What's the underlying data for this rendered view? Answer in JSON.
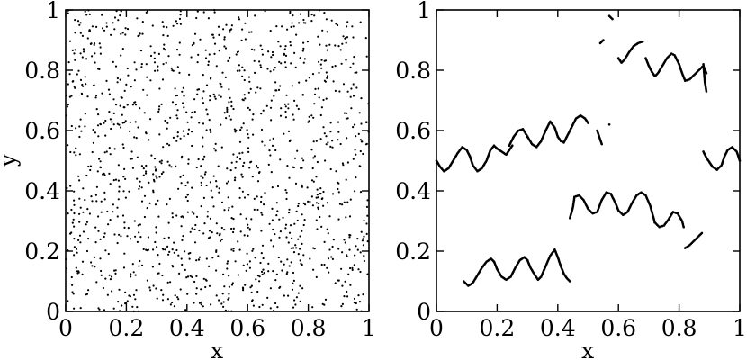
{
  "chart_data": [
    {
      "type": "scatter",
      "xlabel": "x",
      "ylabel": "y",
      "xlim": [
        0,
        1
      ],
      "ylim": [
        0,
        1
      ],
      "grid": false,
      "xticks": [
        "0",
        "0.2",
        "0.4",
        "0.6",
        "0.8",
        "1"
      ],
      "yticks": [
        "0",
        "0.2",
        "0.4",
        "0.6",
        "0.8",
        "1"
      ],
      "marker_color": "#000000",
      "distribution": "uniform random points over the unit square",
      "point_count": 1400,
      "seed": 7
    },
    {
      "type": "scatter",
      "xlabel": "x",
      "ylabel": "",
      "xlim": [
        0,
        1
      ],
      "ylim": [
        0,
        1
      ],
      "grid": false,
      "xticks": [
        "0",
        "0.2",
        "0.4",
        "0.6",
        "0.8",
        "1"
      ],
      "yticks": [
        "0",
        "0.2",
        "0.4",
        "0.6",
        "0.8",
        "1"
      ],
      "marker_color": "#000000",
      "curve_segments": [
        [
          [
            0.0,
            0.5
          ],
          [
            0.012,
            0.48
          ],
          [
            0.025,
            0.465
          ],
          [
            0.04,
            0.475
          ],
          [
            0.055,
            0.5
          ],
          [
            0.07,
            0.525
          ],
          [
            0.085,
            0.545
          ],
          [
            0.1,
            0.535
          ],
          [
            0.11,
            0.515
          ]
        ],
        [
          [
            0.11,
            0.515
          ],
          [
            0.12,
            0.485
          ],
          [
            0.135,
            0.465
          ],
          [
            0.15,
            0.475
          ],
          [
            0.165,
            0.5
          ],
          [
            0.178,
            0.535
          ],
          [
            0.19,
            0.55
          ],
          [
            0.2,
            0.54
          ]
        ],
        [
          [
            0.2,
            0.54
          ],
          [
            0.215,
            0.53
          ],
          [
            0.23,
            0.52
          ],
          [
            0.24,
            0.535
          ],
          [
            0.25,
            0.55
          ]
        ],
        [
          [
            0.24,
            0.55
          ],
          [
            0.255,
            0.58
          ],
          [
            0.27,
            0.6
          ],
          [
            0.285,
            0.605
          ],
          [
            0.3,
            0.58
          ]
        ],
        [
          [
            0.3,
            0.58
          ],
          [
            0.315,
            0.555
          ],
          [
            0.33,
            0.545
          ],
          [
            0.345,
            0.565
          ],
          [
            0.36,
            0.6
          ],
          [
            0.375,
            0.63
          ],
          [
            0.39,
            0.61
          ],
          [
            0.4,
            0.58
          ]
        ],
        [
          [
            0.4,
            0.58
          ],
          [
            0.41,
            0.565
          ],
          [
            0.42,
            0.56
          ],
          [
            0.43,
            0.58
          ],
          [
            0.445,
            0.61
          ],
          [
            0.46,
            0.64
          ],
          [
            0.475,
            0.65
          ],
          [
            0.49,
            0.64
          ],
          [
            0.5,
            0.625
          ]
        ],
        [
          [
            0.53,
            0.6
          ],
          [
            0.545,
            0.555
          ]
        ],
        [
          [
            0.57,
            0.62
          ]
        ],
        [
          [
            0.54,
            0.89
          ],
          [
            0.55,
            0.9
          ]
        ],
        [
          [
            0.57,
            0.98
          ],
          [
            0.58,
            0.97
          ]
        ],
        [
          [
            0.6,
            0.84
          ],
          [
            0.61,
            0.825
          ],
          [
            0.62,
            0.835
          ],
          [
            0.635,
            0.86
          ],
          [
            0.65,
            0.88
          ],
          [
            0.665,
            0.89
          ],
          [
            0.68,
            0.895
          ]
        ],
        [
          [
            0.69,
            0.84
          ],
          [
            0.7,
            0.815
          ],
          [
            0.71,
            0.795
          ],
          [
            0.72,
            0.78
          ],
          [
            0.73,
            0.79
          ],
          [
            0.745,
            0.815
          ],
          [
            0.76,
            0.84
          ],
          [
            0.775,
            0.855
          ],
          [
            0.785,
            0.85
          ],
          [
            0.8,
            0.82
          ]
        ],
        [
          [
            0.8,
            0.82
          ],
          [
            0.81,
            0.79
          ],
          [
            0.82,
            0.765
          ],
          [
            0.835,
            0.77
          ],
          [
            0.85,
            0.785
          ],
          [
            0.865,
            0.8
          ],
          [
            0.88,
            0.815
          ],
          [
            0.89,
            0.79
          ]
        ],
        [
          [
            0.88,
            0.82
          ],
          [
            0.885,
            0.76
          ],
          [
            0.89,
            0.73
          ]
        ],
        [
          [
            0.88,
            0.53
          ],
          [
            0.89,
            0.51
          ],
          [
            0.9,
            0.495
          ],
          [
            0.91,
            0.48
          ],
          [
            0.925,
            0.47
          ],
          [
            0.94,
            0.485
          ],
          [
            0.95,
            0.515
          ],
          [
            0.96,
            0.535
          ],
          [
            0.975,
            0.545
          ],
          [
            0.99,
            0.53
          ],
          [
            1.0,
            0.5
          ]
        ],
        [
          [
            0.44,
            0.31
          ],
          [
            0.45,
            0.345
          ],
          [
            0.455,
            0.38
          ],
          [
            0.47,
            0.385
          ],
          [
            0.485,
            0.37
          ],
          [
            0.5,
            0.34
          ],
          [
            0.515,
            0.325
          ],
          [
            0.53,
            0.33
          ],
          [
            0.545,
            0.37
          ],
          [
            0.56,
            0.395
          ],
          [
            0.575,
            0.39
          ],
          [
            0.59,
            0.36
          ]
        ],
        [
          [
            0.59,
            0.36
          ],
          [
            0.6,
            0.335
          ],
          [
            0.615,
            0.32
          ],
          [
            0.63,
            0.33
          ],
          [
            0.645,
            0.36
          ],
          [
            0.66,
            0.385
          ],
          [
            0.675,
            0.395
          ],
          [
            0.69,
            0.385
          ],
          [
            0.705,
            0.35
          ],
          [
            0.72,
            0.295
          ]
        ],
        [
          [
            0.72,
            0.295
          ],
          [
            0.735,
            0.28
          ],
          [
            0.75,
            0.285
          ],
          [
            0.765,
            0.305
          ],
          [
            0.78,
            0.33
          ],
          [
            0.795,
            0.325
          ],
          [
            0.81,
            0.3
          ],
          [
            0.815,
            0.28
          ]
        ],
        [
          [
            0.82,
            0.21
          ],
          [
            0.835,
            0.22
          ],
          [
            0.85,
            0.235
          ],
          [
            0.865,
            0.25
          ],
          [
            0.875,
            0.26
          ]
        ],
        [
          [
            0.09,
            0.1
          ],
          [
            0.105,
            0.085
          ],
          [
            0.12,
            0.095
          ],
          [
            0.135,
            0.12
          ],
          [
            0.15,
            0.145
          ],
          [
            0.165,
            0.165
          ],
          [
            0.18,
            0.175
          ],
          [
            0.19,
            0.165
          ]
        ],
        [
          [
            0.19,
            0.165
          ],
          [
            0.2,
            0.14
          ],
          [
            0.215,
            0.115
          ],
          [
            0.23,
            0.105
          ],
          [
            0.245,
            0.115
          ],
          [
            0.26,
            0.145
          ],
          [
            0.275,
            0.17
          ],
          [
            0.29,
            0.18
          ],
          [
            0.3,
            0.17
          ]
        ],
        [
          [
            0.3,
            0.17
          ],
          [
            0.31,
            0.145
          ],
          [
            0.325,
            0.12
          ],
          [
            0.335,
            0.105
          ],
          [
            0.345,
            0.115
          ],
          [
            0.36,
            0.15
          ],
          [
            0.375,
            0.185
          ],
          [
            0.39,
            0.205
          ],
          [
            0.4,
            0.18
          ]
        ],
        [
          [
            0.4,
            0.18
          ],
          [
            0.41,
            0.15
          ],
          [
            0.42,
            0.125
          ],
          [
            0.43,
            0.11
          ],
          [
            0.44,
            0.1
          ]
        ]
      ]
    }
  ]
}
